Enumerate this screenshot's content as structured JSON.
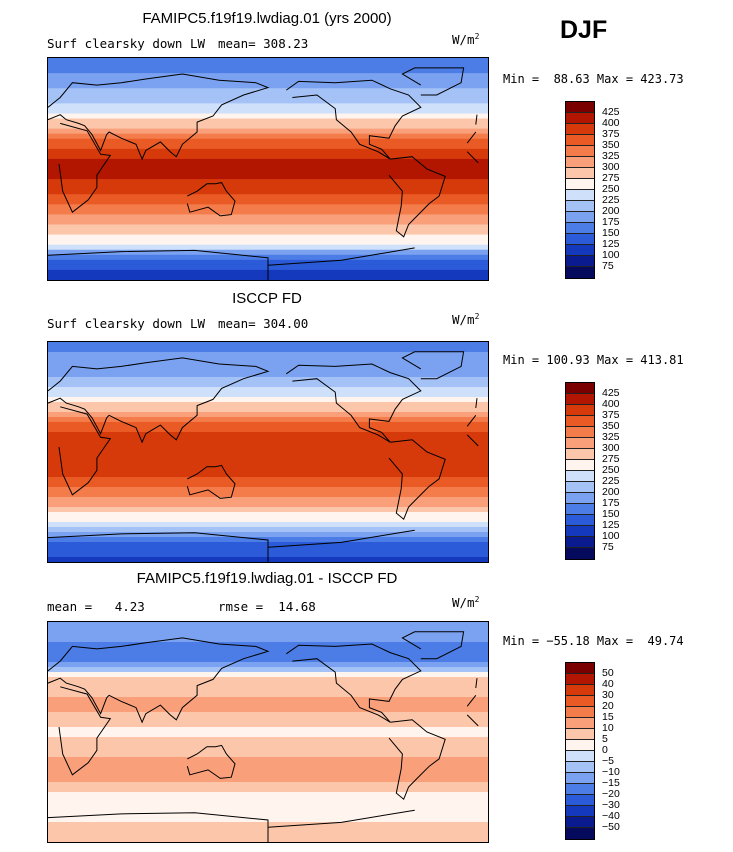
{
  "season": "DJF",
  "units": "W/m",
  "units_sup": "2",
  "chart_data": [
    {
      "type": "heatmap",
      "title": "FAMIPC5.f19f19.lwdiag.01 (yrs 2000)",
      "subtitle_left": "Surf clearsky down LW",
      "stat_text": "mean= 308.23",
      "minmax_text": "Min =  88.63 Max = 423.73",
      "colorbar_labels": [
        "425",
        "400",
        "375",
        "350",
        "325",
        "300",
        "275",
        "250",
        "225",
        "200",
        "175",
        "150",
        "125",
        "100",
        "75"
      ],
      "colorbar_colors": [
        "#7a0000",
        "#b21600",
        "#d63a0a",
        "#ea5a24",
        "#f47b4a",
        "#f9a07b",
        "#fcc6aa",
        "#fff4ee",
        "#cfe0fb",
        "#a5c2f7",
        "#7aa2f0",
        "#4c7de6",
        "#2b5bd8",
        "#1439bd",
        "#0a1a8f",
        "#050a5c"
      ],
      "zonal_profile": [
        {
          "lat": 90,
          "value": 150
        },
        {
          "lat": 60,
          "value": 210
        },
        {
          "lat": 45,
          "value": 255
        },
        {
          "lat": 30,
          "value": 320
        },
        {
          "lat": 15,
          "value": 390
        },
        {
          "lat": 0,
          "value": 410
        },
        {
          "lat": -15,
          "value": 395
        },
        {
          "lat": -30,
          "value": 345
        },
        {
          "lat": -45,
          "value": 300
        },
        {
          "lat": -60,
          "value": 250
        },
        {
          "lat": -75,
          "value": 140
        },
        {
          "lat": -90,
          "value": 100
        }
      ]
    },
    {
      "type": "heatmap",
      "title": "ISCCP FD",
      "subtitle_left": "Surf clearsky down LW",
      "stat_text": "mean= 304.00",
      "minmax_text": "Min = 100.93 Max = 413.81",
      "colorbar_labels": [
        "425",
        "400",
        "375",
        "350",
        "325",
        "300",
        "275",
        "250",
        "225",
        "200",
        "175",
        "150",
        "125",
        "100",
        "75"
      ],
      "colorbar_colors": [
        "#7a0000",
        "#b21600",
        "#d63a0a",
        "#ea5a24",
        "#f47b4a",
        "#f9a07b",
        "#fcc6aa",
        "#fff4ee",
        "#cfe0fb",
        "#a5c2f7",
        "#7aa2f0",
        "#4c7de6",
        "#2b5bd8",
        "#1439bd",
        "#0a1a8f",
        "#050a5c"
      ],
      "zonal_profile": [
        {
          "lat": 90,
          "value": 160
        },
        {
          "lat": 60,
          "value": 205
        },
        {
          "lat": 45,
          "value": 250
        },
        {
          "lat": 30,
          "value": 315
        },
        {
          "lat": 15,
          "value": 385
        },
        {
          "lat": 0,
          "value": 400
        },
        {
          "lat": -15,
          "value": 390
        },
        {
          "lat": -30,
          "value": 340
        },
        {
          "lat": -45,
          "value": 295
        },
        {
          "lat": -60,
          "value": 245
        },
        {
          "lat": -75,
          "value": 150
        },
        {
          "lat": -90,
          "value": 110
        }
      ]
    },
    {
      "type": "heatmap",
      "title": "FAMIPC5.f19f19.lwdiag.01 - ISCCP FD",
      "stat_text": "mean =   4.23",
      "stat_text2": "rmse =  14.68",
      "minmax_text": "Min = −55.18 Max =  49.74",
      "colorbar_labels": [
        "50",
        "40",
        "30",
        "20",
        "15",
        "10",
        "5",
        "0",
        "−5",
        "−10",
        "−15",
        "−20",
        "−30",
        "−40",
        "−50"
      ],
      "colorbar_colors": [
        "#7a0000",
        "#b21600",
        "#d63a0a",
        "#ea5a24",
        "#f47b4a",
        "#f9a07b",
        "#fcc6aa",
        "#fff4ee",
        "#cfe0fb",
        "#a5c2f7",
        "#7aa2f0",
        "#4c7de6",
        "#2b5bd8",
        "#1439bd",
        "#0a1a8f",
        "#050a5c"
      ],
      "zonal_profile": [
        {
          "lat": 90,
          "value": -10
        },
        {
          "lat": 60,
          "value": -20
        },
        {
          "lat": 45,
          "value": 5
        },
        {
          "lat": 30,
          "value": 10
        },
        {
          "lat": 15,
          "value": 10
        },
        {
          "lat": 0,
          "value": 3
        },
        {
          "lat": -15,
          "value": 8
        },
        {
          "lat": -30,
          "value": 15
        },
        {
          "lat": -45,
          "value": 8
        },
        {
          "lat": -60,
          "value": 0
        },
        {
          "lat": -75,
          "value": 5
        },
        {
          "lat": -90,
          "value": 5
        }
      ]
    }
  ]
}
